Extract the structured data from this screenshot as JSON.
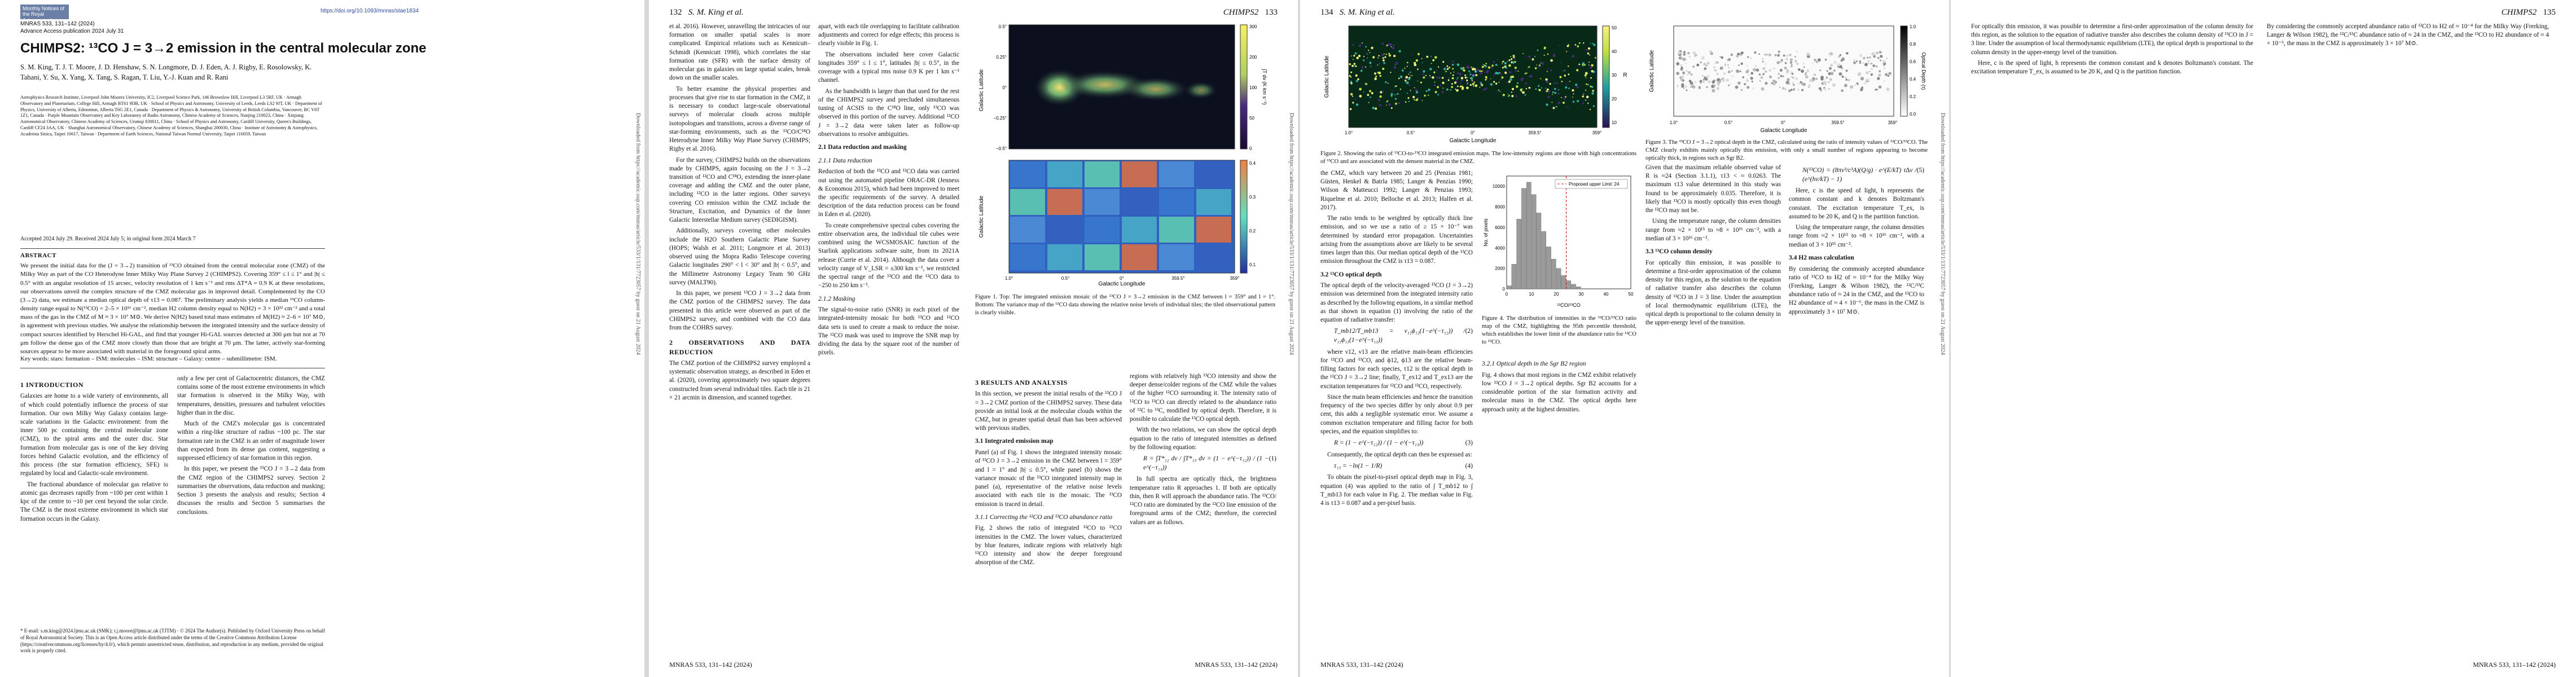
{
  "journal": {
    "logo": "Monthly Notices of the Royal Astronomical Society",
    "line1": "MNRAS 533, 131–142 (2024)",
    "line2": "Advance Access publication 2024 July 31",
    "doi": "https://doi.org/10.1093/mnras/stae1834"
  },
  "paper": {
    "title": "CHIMPS2: ¹³CO J = 3→2 emission in the central molecular zone",
    "authors": "S. M. King, T. J. T. Moore, J. D. Henshaw, S. N. Longmore, D. J. Eden, A. J. Rigby, E. Rosolowsky, K. Tahani, Y. Su, X. Yang, X. Tang, S. Ragan, T. Liu, Y.-J. Kuan and R. Rani",
    "affiliations": "Astrophysics Research Institute, Liverpool John Moores University, IC2, Liverpool Science Park, 146 Brownlow Hill, Liverpool L3 5RF, UK · Armagh Observatory and Planetarium, College Hill, Armagh BT61 9DB, UK · School of Physics and Astronomy, University of Leeds, Leeds LS2 9JT, UK · Department of Physics, University of Alberta, Edmonton, Alberta T6G 2E1, Canada · Department of Physics & Astronomy, University of British Columbia, Vancouver, BC V6T 1Z1, Canada · Purple Mountain Observatory and Key Laboratory of Radio Astronomy, Chinese Academy of Sciences, Nanjing 210023, China · Xinjiang Astronomical Observatory, Chinese Academy of Sciences, Urumqi 830011, China · School of Physics and Astronomy, Cardiff University, Queen's Buildings, Cardiff CF24 3AA, UK · Shanghai Astronomical Observatory, Chinese Academy of Sciences, Shanghai 200030, China · Institute of Astronomy & Astrophysics, Academia Sinica, Taipei 10617, Taiwan · Department of Earth Sciences, National Taiwan Normal University, Taipei 116059, Taiwan",
    "accepted": "Accepted 2024 July 29. Received 2024 July 5; in original form 2024 March 7",
    "abstract_title": "ABSTRACT",
    "abstract": "We present the initial data for the (J = 3→2) transition of ¹³CO obtained from the central molecular zone (CMZ) of the Milky Way as part of the CO Heterodyne Inner Milky Way Plane Survey 2 (CHIMPS2). Covering 359° ≤ l ≤ 1° and |b| ≤ 0.5° with an angular resolution of 15 arcsec, velocity resolution of 1 km s⁻¹ and rms ΔT*A = 0.9 K at these resolutions, our observations unveil the complex structure of the CMZ molecular gas in improved detail. Complemented by the CO (3→2) data, we estimate a median optical depth of τ13 = 0.087. The preliminary analysis yields a median ¹³CO column-density range equal to N(¹³CO) = 2–5 × 10¹⁶ cm⁻², median H2 column density equal to N(H2) = 3 × 10²² cm⁻² and a total mass of the gas in the CMZ of M ≈ 3 × 10⁷ M⊙. We derive N(H2) based total mass estimates of M(H2) ≈ 2–6 × 10⁷ M⊙, in agreement with previous studies. We analyse the relationship between the integrated intensity and the surface density of compact sources identified by Herschel Hi-GAL, and find that younger Hi-GAL sources detected at 300 μm but not at 70 μm follow the dense gas of the CMZ more closely than those that are bright at 70 μm. The latter, actively star-forming sources appear to be more associated with material in the foreground spiral arms.",
    "keywords": "Key words: stars: formation – ISM: molecules – ISM: structure – Galaxy: centre – submillimetre: ISM.",
    "footnote": "* E-mail: s.m.king@2024.ljmu.ac.uk (SMK); t.j.moore@ljmu.ac.uk (TJTM) · © 2024 The Author(s). Published by Oxford University Press on behalf of Royal Astronomical Society. This is an Open Access article distributed under the terms of the Creative Commons Attribution License (https://creativecommons.org/licenses/by/4.0/), which permits unrestricted reuse, distribution, and reproduction in any medium, provided the original work is properly cited."
  },
  "pages": {
    "p2_left": "132",
    "p2_head": "S. M. King et al.",
    "p3_head": "CHIMPS2",
    "p3_right": "133",
    "p4_left": "134",
    "p4_head": "S. M. King et al.",
    "p5_head": "CHIMPS2",
    "p5_right": "135",
    "footer": "MNRAS 533, 131–142 (2024)",
    "download_note": "Downloaded from https://academic.oup.com/mnras/article/533/1/131/7723057 by guest on 21 August 2024"
  },
  "sections": {
    "intro_h": "1 INTRODUCTION",
    "intro_p1": "Galaxies are home to a wide variety of environments, all of which could potentially influence the process of star formation. Our own Milky Way Galaxy contains large-scale variations in the Galactic environment: from the inner 500 pc containing the central molecular zone (CMZ), to the spiral arms and the outer disc. Star formation from molecular gas is one of the key driving forces behind Galactic evolution, and the efficiency of this process (the star formation efficiency, SFE) is regulated by local and Galactic-scale environment.",
    "intro_p2": "The fractional abundance of molecular gas relative to atomic gas decreases rapidly from ~100 per cent within 1 kpc of the centre to ~10 per cent beyond the solar circle. The CMZ is the most extreme environment in which star formation occurs in the Galaxy.",
    "col2_p1": "only a few per cent of Galactocentric distances, the CMZ contains some of the most extreme environments in which star formation is observed in the Milky Way, with temperatures, densities, pressures and turbulent velocities higher than in the disc.",
    "col2_p2": "Much of the CMZ's molecular gas is concentrated within a ring-like structure of radius ~100 pc. The star formation rate in the CMZ is an order of magnitude lower than expected from its dense gas content, suggesting a suppressed efficiency of star formation in this region.",
    "col2_p3": "In this paper, we present the ¹³CO J = 3→2 data from the CMZ region of the CHIMPS2 survey. Section 2 summarises the observations, data reduction and masking; Section 3 presents the analysis and results; Section 4 discusses the results and Section 5 summarises the conclusions.",
    "obs_h": "2 OBSERVATIONS AND DATA REDUCTION",
    "obs_p1": "The CMZ portion of the CHIMPS2 survey employed a systematic observation strategy, as described in Eden et al. (2020), covering approximately two square degrees constructed from several individual tiles. Each tile is 21 × 21 arcmin in dimension, and scanned together.",
    "p3c1_p1": "et al. 2016). However, unravelling the intricacies of our formation on smaller spatial scales is more complicated. Empirical relations such as Kennicutt–Schmidt (Kennicutt 1998), which correlates the star formation rate (SFR) with the surface density of molecular gas in galaxies on large spatial scales, break down on the smaller scales.",
    "p3c1_p2": "To better examine the physical properties and processes that give rise to star formation in the CMZ, it is necessary to conduct large-scale observational surveys of molecular clouds across multiple isotopologues and transitions, across a diverse range of star-forming environments, such as the ¹³CO/C¹⁸O Heterodyne Inner Milky Way Plane Survey (CHIMPS; Rigby et al. 2016).",
    "p3c1_p3": "For the survey, CHIMPS2 builds on the observations made by CHIMPS, again focusing on the J = 3→2 transition of ¹²CO and C¹⁸O, extending the inner-plane coverage and adding the CMZ and the outer plane, including ¹²CO in the latter regions. Other surveys covering CO emission within the CMZ include the Structure, Excitation, and Dynamics of the Inner Galactic Interstellar Medium survey (SEDIGISM).",
    "p3c1_p4": "Additionally, surveys covering other molecules include the H2O Southern Galactic Plane Survey (HOPS; Walsh et al. 2011; Longmore et al. 2013) observed using the Mopra Radio Telescope covering Galactic longitudes 290° < l < 30° and |b| < 0.5°, and the Millimetre Astronomy Legacy Team 90 GHz survey (MALT90).",
    "p3c1_p5": "In this paper, we present ¹³CO J = 3→2 data from the CMZ portion of the CHIMPS2 survey. The data presented in this article were observed as part of the CHIMPS2 survey, and combined with the CO data from the COHRS survey.",
    "p3c2_p1": "apart, with each tile overlapping to facilitate calibration adjustments and correct for edge effects; this process is clearly visible in Fig. 1.",
    "p3c2_p2": "The observations included here cover Galactic longitudes 359° ≤ l ≤ 1°, latitudes |b| ≤ 0.5°, in the coverage with a typical rms noise 0.9 K per 1 km s⁻¹ channel.",
    "p3c2_p3": "As the bandwidth is larger than that used for the rest of the CHIMPS2 survey and precluded simultaneous tuning of ACSIS to the C¹⁸O line, only ¹³CO was observed in this portion of the survey. Additional ¹²CO J = 3→2 data were taken later as follow-up observations to resolve ambiguities.",
    "dr_h": "2.1 Data reduction and masking",
    "dr_sub": "2.1.1 Data reduction",
    "dr_p1": "Reduction of both the ¹³CO and ¹²CO data was carried out using the automated pipeline ORAC-DR (Jenness & Economou 2015), which had been improved to meet the specific requirements of the survey. A detailed description of the data reduction process can be found in Eden et al. (2020).",
    "dr_p2": "To create comprehensive spectral cubes covering the entire observation area, the individual tile cubes were combined using the WCSMOSAIC function of the Starlink applications software suite, from its 2021A release (Currie et al. 2014). Although the data cover a velocity range of V_LSR = ±300 km s⁻¹, we restricted the spectral range of the ¹³CO and the ¹²CO data to −250 to 250 km s⁻¹.",
    "mask_sub": "2.1.2 Masking",
    "mask_p1": "The signal-to-noise ratio (SNR) in each pixel of the integrated-intensity mosaic for both ¹³CO and ¹²CO data sets is used to create a mask to reduce the noise. The ¹²CO mask was used to improve the SNR map by dividing the data by the square root of the number of pixels.",
    "results_h": "3 RESULTS AND ANALYSIS",
    "results_p1": "In this section, we present the initial results of the ¹³CO J = 3→2 CMZ portion of the CHIMPS2 survey. These data provide an initial look at the molecular clouds within the CMZ, but in greater spatial detail than has been achieved with previous studies.",
    "intmap_sub": "3.1 Integrated emission map",
    "intmap_p1": "Panel (a) of Fig. 1 shows the integrated intensity mosaic of ¹³CO J = 3→2 emission in the CMZ between l = 359° and l = 1° and |b| ≤ 0.5°, while panel (b) shows the variance mosaic of the ¹³CO integrated intensity map in panel (a), representative of the relative noise levels associated with each tile in the mosaic. The ¹³CO emission is traced in detail.",
    "ratio_sub": "3.1.1 Correcting the ¹²CO and ¹³CO abundance ratio",
    "ratio_p1": "Fig. 2 shows the ratio of integrated ¹²CO to ¹³CO intensities in the CMZ. The lower values, characterized by blue features, indicate regions with relatively high ¹³CO intensity and show the deeper foreground absorption of the CMZ.",
    "p3c4_p1": "regions with relatively high ¹³CO intensity and show the deeper dense/colder regions of the CMZ while the values of the higher ¹²CO surrounding it. The intensity ratio of ¹²CO to ¹³CO can directly related to the abundance ratio of ¹²C to ¹³C, modified by optical depth. Therefore, it is possible to calculate the ¹³CO optical depth.",
    "p3c4_p2": "With the two relations, we can show the optical depth equation to the ratio of integrated intensities as defined by the following equation:",
    "p3c4_p3": "In full spectra are optically thick, the brightness temperature ratio R approaches 1. If both are optically thin, then R will approach the abundance ratio. The ¹³CO/¹²CO ratio are dominated by the ¹²CO line emission of the foreground arms of the CMZ; therefore, the corrected values are as follows.",
    "opt_h": "3.2 ¹³CO optical depth",
    "opt_p1": "The optical depth of the velocity-averaged ¹³CO (J = 3→2) emission was determined from the integrated intensity ratio as described by the following equations, in a similar method as that shown in equation (1) involving the ratio of the equation of radiative transfer:",
    "opt_p2": "where ν12, ν13 are the relative main-beam efficiencies for ¹²CO and ¹³CO, and ϕ12, ϕ13 are the relative beam-filling factors for each species, τ12 is the optical depth in the ¹²CO J = 3→2 line; finally, T_ex12 and T_ex13 are the excitation temperatures for ¹²CO and ¹³CO, respectively.",
    "opt_p3": "Since the main beam efficiencies and hence the transition frequency of the two species differ by only about 0.9 per cent, this adds a negligible systematic error. We assume a common excitation temperature and filling factor for both species, and the equation simplifies to:",
    "opt_p4": "Consequently, the optical depth can then be expressed as:",
    "opt_p5": "To obtain the pixel-to-pixel optical depth map in Fig. 3, equation (4) was applied to the ratio of ∫ T_mb12 to ∫ T_mb13 for each value in Fig. 2. The median value in Fig. 4 is τ13 = 0.087 and a per-pixel basis.",
    "fig4_caption": "Figure 4. The distribution of intensities in the ¹²CO/¹³CO ratio map of the CMZ, highlighting the 95th percentile threshold, which establishes the lower limit of the abundance ratio for ¹²CO to ¹³CO.",
    "p4c3_p1": "the CMZ, which vary between 20 and 25 (Penzias 1981; Güsten, Henkel & Batrla 1985; Langer & Penzias 1990; Wilson & Matteucci 1992; Langer & Penzias 1993; Riquelme et al. 2010; Belloche et al. 2013; Halfen et al. 2017).",
    "p4c3_p2": "The ratio tends to be weighted by optically thick line emission, and so we use a ratio of ≥ 15 × 10⁻⁷ was determined by standard error propagation. Uncertainties arising from the assumptions above are likely to be several times larger than this. Our median optical depth of the ¹³CO emission throughout the CMZ is τ13 = 0.087.",
    "sgr_sub": "3.2.1 Optical depth in the Sgr B2 region",
    "sgr_p1": "Fig. 4 shows that most regions in the CMZ exhibit relatively low ¹³CO J = 3→2 optical depths. Sgr B2 accounts for a considerable portion of the star formation activity and molecular mass in the CMZ. The optical depths here approach unity at the highest densities.",
    "p4c4_p1": "Given that the maximum reliable observed value of R is ≈24 (Section 3.1.1), τ13 < ≈ 0.0263. The maximum τ13 value determined in this study was found to be approximately 0.035. Therefore, it is likely that ¹³CO is mostly optically thin even though the ¹²CO may not be.",
    "p4c4_p2": "Using the temperature range, the column densities range from ≈2 × 10¹⁵ to ≈8 × 10¹⁶ cm⁻², with a median of 3 × 10¹⁶ cm⁻².",
    "colden_h": "3.3 ¹³CO column density",
    "colden_p1": "For optically thin emission, it was possible to determine a first-order approximation of the column density for this region, as the solution to the equation of radiative transfer also describes the column density of ¹³CO in J = 3 line. Under the assumption of local thermodynamic equilibrium (LTE), the optical depth is proportional to the column density in the upper-energy level of the transition.",
    "p5c1_p1": "Here, c is the speed of light, h represents the common constant and k denotes Boltzmann's constant. The excitation temperature T_ex, is assumed to be 20 K, and Q is the partition function.",
    "p5c1_p2": "Using the temperature range, the column densities range from ≈2 × 10¹⁵ to ≈8 × 10¹⁶ cm⁻², with a median of 3 × 10¹⁶ cm⁻².",
    "h2_h": "3.4 H2 mass calculation",
    "h2_p1": "By considering the commonly accepted abundance ratio of ¹²CO to H2 of ≈ 10⁻⁴ for the Milky Way (Frerking, Langer & Wilson 1982), the ¹²C/¹³C abundance ratio of ≈ 24 in the CMZ, and the ¹³CO to H2 abundance of ≈ 4 × 10⁻⁶, the mass in the CMZ is approximately 3 × 10⁷ M⊙."
  },
  "figures": {
    "fig1_caption": "Figure 1. Top: The integrated emission mosaic of the ¹³CO J = 3→2 emission in the CMZ between l = 359° and l = 1°. Bottom: The variance map of the ¹³CO data showing the relative noise levels of individual tiles; the tiled observational pattern is clearly visible.",
    "fig2_caption": "Figure 2. Showing the ratio of ¹²CO-to-¹³CO integrated emission maps. The low-intensity regions are those with high concentrations of ¹³CO and are associated with the densest material in the CMZ.",
    "fig3_caption": "Figure 3. The ¹³CO J = 3→2 optical depth in the CMZ, calculated using the ratio of intensity values of ¹²CO/¹³CO. The CMZ clearly exhibits mainly optically thin emission, with only a small number of regions appearing to become optically thick, in regions such as Sgr B2.",
    "xlabel": "Galactic Longitude",
    "ylabel": "Galactic Latitude",
    "lon_ticks": [
      "1.0°",
      "0.5°",
      "0°",
      "359.5°",
      "359°"
    ],
    "lat_ticks": [
      "0.5°",
      "0.25°",
      "0°",
      "−0.25°",
      "−0.5°"
    ],
    "cbar1_label": "∫T dv (K km s⁻¹)",
    "cbar1_ticks": [
      "300",
      "200",
      "100",
      "50",
      "0"
    ],
    "cbar1b_ticks": [
      "0.4",
      "0.3",
      "0.2",
      "0.1"
    ],
    "cbar2_label": "R",
    "cbar2_ticks": [
      "50",
      "40",
      "30",
      "20",
      "10"
    ],
    "cbar3_label": "Optical Depth (τ)",
    "cbar3_ticks": [
      "1.0",
      "0.8",
      "0.6",
      "0.4",
      "0.2",
      "0.0"
    ]
  },
  "chart_data": {
    "type": "bar",
    "title": "",
    "xlabel": "¹²CO/¹³CO",
    "ylabel": "No. of pixels",
    "legend": "Proposed upper Limit: 24",
    "threshold": 24,
    "categories": [
      "2",
      "4",
      "6",
      "8",
      "10",
      "12",
      "14",
      "16",
      "18",
      "20",
      "22",
      "24",
      "26",
      "28",
      "30"
    ],
    "values": [
      300,
      2400,
      6800,
      9800,
      10400,
      9200,
      7400,
      5600,
      4100,
      2900,
      2000,
      1300,
      800,
      450,
      200
    ],
    "ylim": [
      0,
      11000
    ],
    "yticks": [
      "10000",
      "8000",
      "6000",
      "4000",
      "2000",
      "0"
    ],
    "xticks": [
      "0",
      "10",
      "20",
      "30",
      "40",
      "50"
    ]
  }
}
